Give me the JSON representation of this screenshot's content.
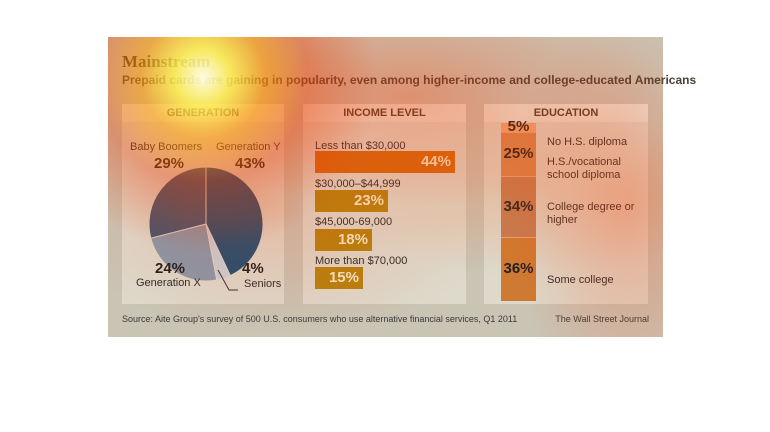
{
  "header": {
    "title": "Mainstream",
    "subtitle": "Prepaid cards are gaining in popularity, even among higher-income and college-educated Americans"
  },
  "footer": {
    "source": "Source: Aite Group's survey of 500 U.S. consumers who use alternative financial services, Q1 2011",
    "credit": "The Wall Street Journal"
  },
  "chart_data": [
    {
      "type": "pie",
      "title": "GENERATION",
      "categories": [
        "Generation Y",
        "Seniors",
        "Generation X",
        "Baby Boomers"
      ],
      "values": [
        43,
        4,
        24,
        29
      ],
      "value_labels": [
        "43%",
        "4%",
        "24%",
        "29%"
      ],
      "colors": [
        "#1f4f73",
        "#c9cfd6",
        "#8898aa",
        "#3c5672"
      ]
    },
    {
      "type": "bar",
      "title": "INCOME LEVEL",
      "categories": [
        "Less than $30,000",
        "$30,000–$44,999",
        "$45,000-69,000",
        "More than $70,000"
      ],
      "values": [
        44,
        23,
        18,
        15
      ],
      "value_labels": [
        "44%",
        "23%",
        "18%",
        "15%"
      ],
      "colors": [
        "#d06a10",
        "#b5820f"
      ]
    },
    {
      "type": "bar",
      "title": "EDUCATION",
      "categories": [
        "No H.S. diploma",
        "H.S./vocational school diploma",
        "College degree or higher",
        "Some college"
      ],
      "values": [
        5,
        25,
        34,
        36
      ],
      "value_labels": [
        "5%",
        "25%",
        "34%",
        "36%"
      ],
      "colors": [
        "#c97a3a"
      ]
    }
  ]
}
